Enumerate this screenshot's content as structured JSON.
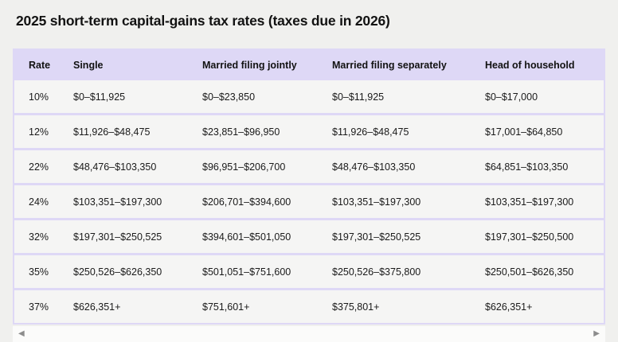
{
  "header": {
    "title": "2025 short-term capital-gains tax rates (taxes due in 2026)"
  },
  "chart_data": {
    "type": "table",
    "title": "2025 short-term capital-gains tax rates (taxes due in 2026)",
    "columns": [
      "Rate",
      "Single",
      "Married filing jointly",
      "Married filing separately",
      "Head of household"
    ],
    "rows": [
      [
        "10%",
        "$0–$11,925",
        "$0–$23,850",
        "$0–$11,925",
        "$0–$17,000"
      ],
      [
        "12%",
        "$11,926–$48,475",
        "$23,851–$96,950",
        "$11,926–$48,475",
        "$17,001–$64,850"
      ],
      [
        "22%",
        "$48,476–$103,350",
        "$96,951–$206,700",
        "$48,476–$103,350",
        "$64,851–$103,350"
      ],
      [
        "24%",
        "$103,351–$197,300",
        "$206,701–$394,600",
        "$103,351–$197,300",
        "$103,351–$197,300"
      ],
      [
        "32%",
        "$197,301–$250,525",
        "$394,601–$501,050",
        "$197,301–$250,525",
        "$197,301–$250,500"
      ],
      [
        "35%",
        "$250,526–$626,350",
        "$501,051–$751,600",
        "$250,526–$375,800",
        "$250,501–$626,350"
      ],
      [
        "37%",
        "$626,351+",
        "$751,601+",
        "$375,801+",
        "$626,351+"
      ]
    ]
  },
  "scrollbar": {
    "left_arrow": "◀",
    "right_arrow": "▶"
  },
  "colors": {
    "page_bg": "#f0f0ee",
    "header_bg": "#ded8f6",
    "row_bg": "#f5f5f4",
    "border": "#ded8f6",
    "title_text": "#121212",
    "cell_text": "#1a1a1a",
    "scroll_track": "#fbfbfa",
    "scroll_arrow": "#8c8c8c"
  }
}
